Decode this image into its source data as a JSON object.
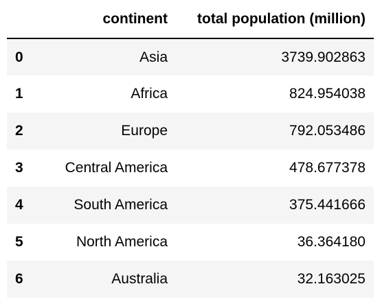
{
  "table": {
    "columns": [
      "continent",
      "total population (million)"
    ],
    "rows": [
      {
        "index": "0",
        "continent": "Asia",
        "population": "3739.902863"
      },
      {
        "index": "1",
        "continent": "Africa",
        "population": "824.954038"
      },
      {
        "index": "2",
        "continent": "Europe",
        "population": "792.053486"
      },
      {
        "index": "3",
        "continent": "Central America",
        "population": "478.677378"
      },
      {
        "index": "4",
        "continent": "South America",
        "population": "375.441666"
      },
      {
        "index": "5",
        "continent": "North America",
        "population": "36.364180"
      },
      {
        "index": "6",
        "continent": "Australia",
        "population": "32.163025"
      }
    ]
  }
}
